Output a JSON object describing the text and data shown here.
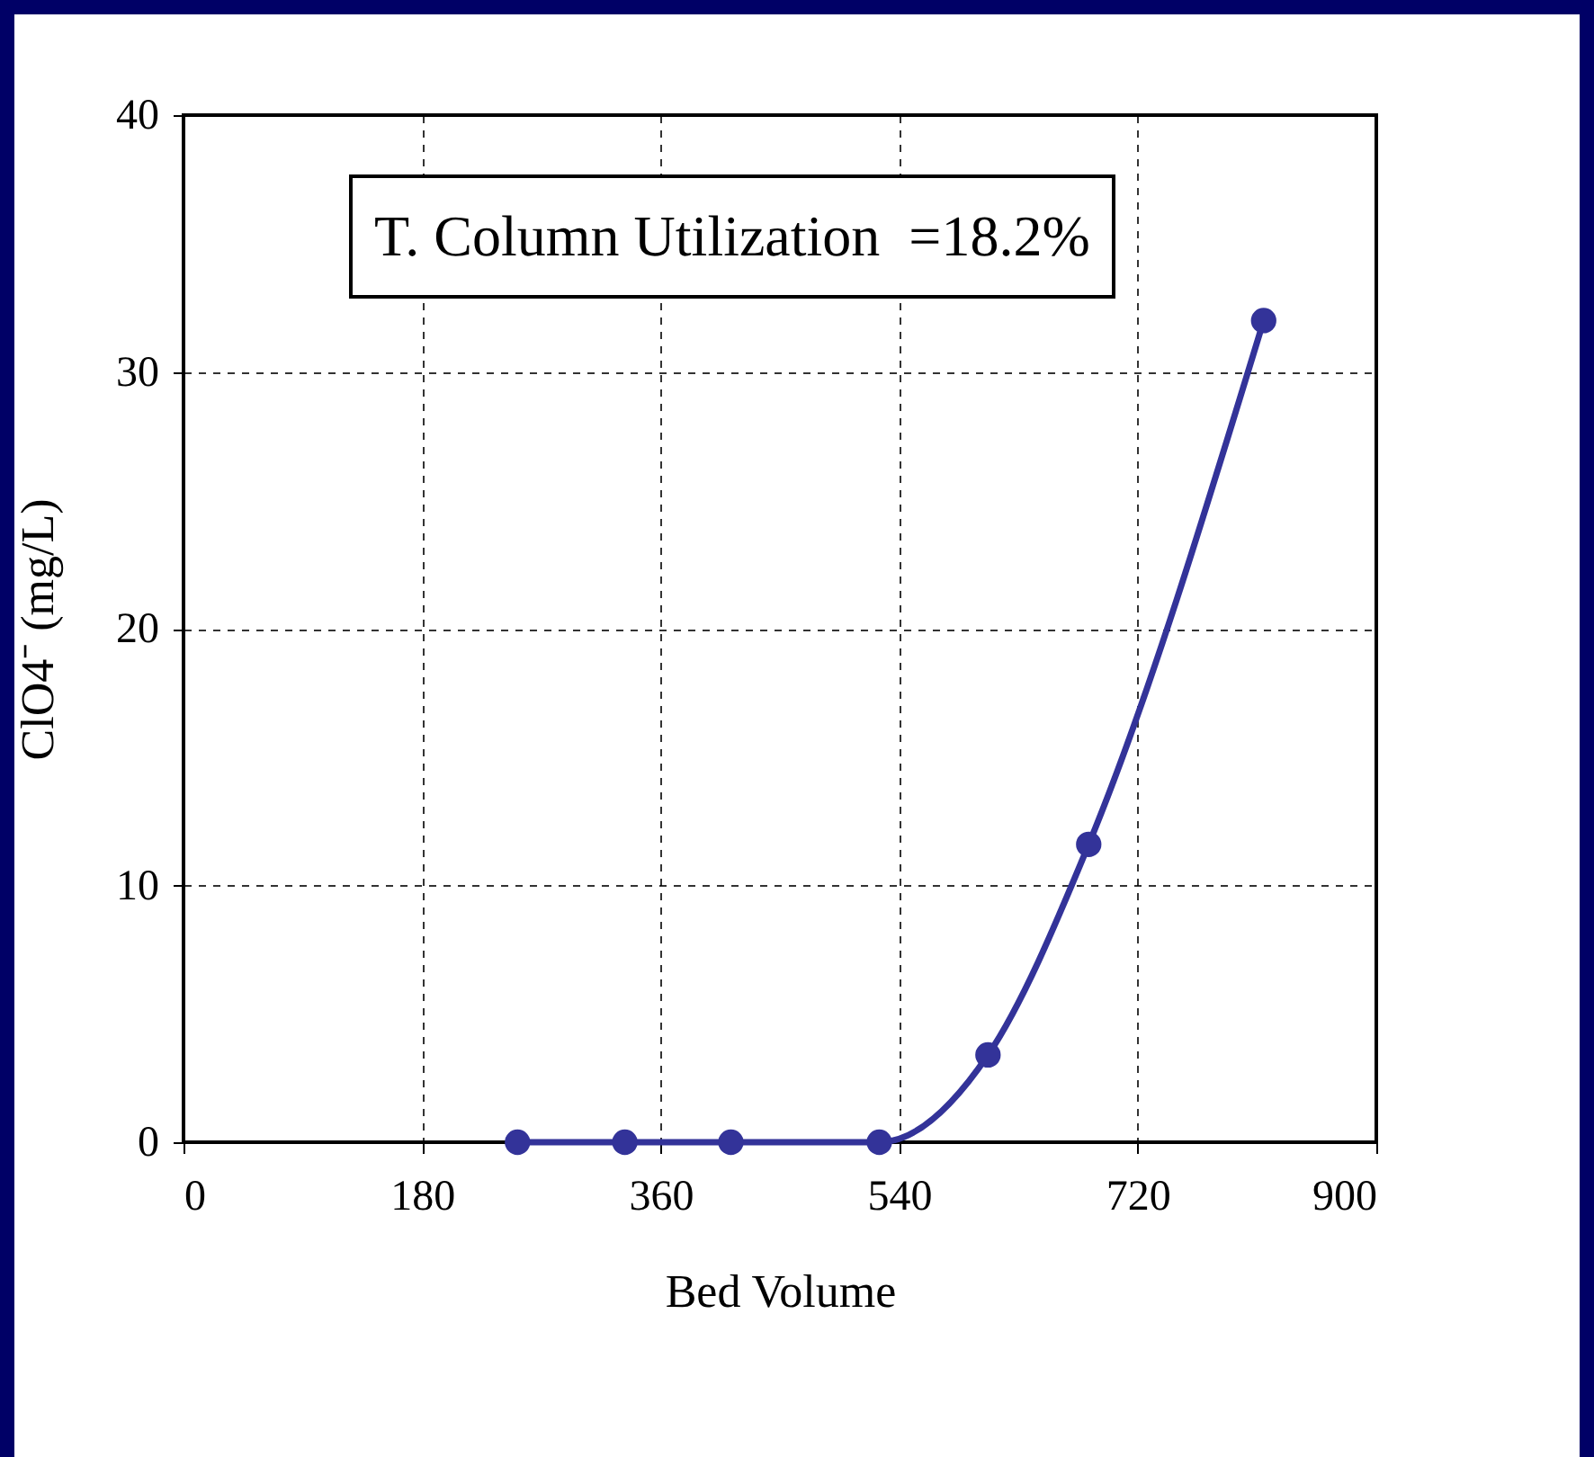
{
  "chart_data": {
    "type": "line",
    "xlabel": "Bed Volume",
    "ylabel": "ClO4⁻  (mg/L)",
    "annotations": [
      "T. Column Utilization  =18.2%"
    ],
    "x": [
      252,
      333,
      413,
      525,
      607,
      683,
      815
    ],
    "series": [
      {
        "color": "#333399",
        "values": [
          0,
          0,
          0,
          0,
          3.4,
          11.6,
          32.0
        ]
      }
    ],
    "xlim": [
      0,
      900
    ],
    "xticks": [
      0,
      180,
      360,
      540,
      720,
      900
    ],
    "ylim": [
      0,
      40
    ],
    "yticks": [
      0,
      10,
      20,
      30,
      40
    ],
    "grid": true,
    "legend": false,
    "marker": "circle",
    "line_style": "solid"
  }
}
